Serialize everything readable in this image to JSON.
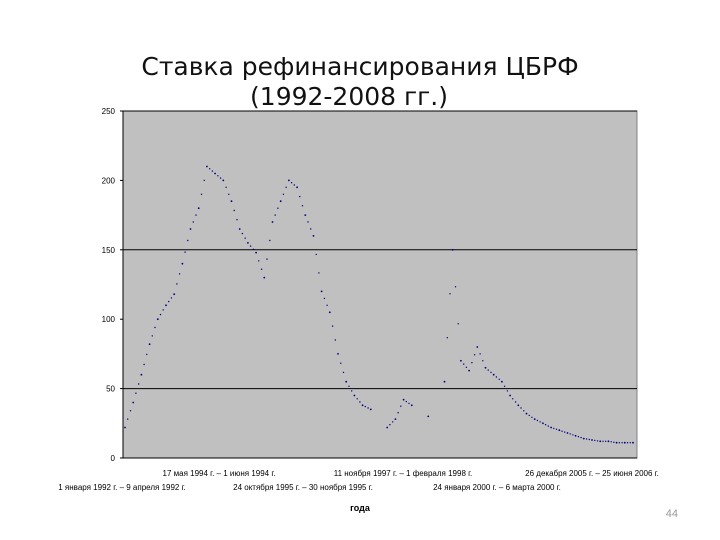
{
  "slide": {
    "title_line1": "Ставка рефинансирования ЦБРФ",
    "title_line2": "(1992-2008 гг.)",
    "page_number": "44"
  },
  "chart_data": {
    "type": "line",
    "title": "Ставка рефинансирования ЦБРФ (1992-2008 гг.)",
    "xlabel": "года",
    "ylabel": "",
    "ylim": [
      0,
      250
    ],
    "yticks": [
      0,
      50,
      100,
      150,
      200,
      250
    ],
    "grid": "horizontal major gridlines at 50, 150, 250",
    "plot_background": "#c0c0c0",
    "line_color": "#000080",
    "line_style": "dotted",
    "x_tick_labels_row1": [
      "17 мая 1994 г. – 1 июня 1994 г.",
      "11 ноября 1997 г. – 1 февраля 1998 г.",
      "26 декабря 2005 г. – 25 июня 2006 г."
    ],
    "x_tick_labels_row2": [
      "1 января 1992 г. – 9 апреля 1992 г.",
      "24 октября 1995 г. – 30 ноября 1995 г.",
      "24 января 2000 г. – 6 марта 2000 г."
    ],
    "series": [
      {
        "values": [
          22,
          40,
          60,
          82,
          100,
          110,
          118,
          140,
          165,
          180,
          210,
          205,
          200,
          185,
          165,
          155,
          148,
          130,
          170,
          185,
          200,
          195,
          175,
          160,
          120,
          105,
          75,
          55,
          45,
          38,
          35,
          null,
          22,
          28,
          42,
          38,
          null,
          30,
          null,
          55,
          150,
          70,
          63,
          80,
          65,
          60,
          55,
          45,
          38,
          32,
          28,
          25,
          22,
          20,
          18,
          16,
          14,
          13,
          12,
          12,
          11,
          11,
          11
        ]
      }
    ]
  }
}
